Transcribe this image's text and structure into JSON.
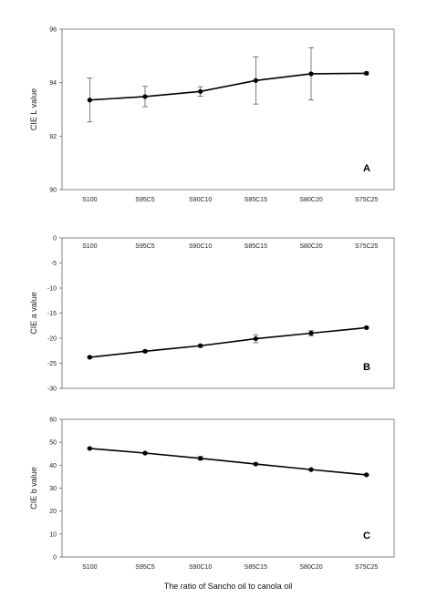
{
  "x_title": "The ratio of Sancho oil to canola oil",
  "chart_data": [
    {
      "type": "line",
      "panel_label": "A",
      "ylabel": "CIE L value",
      "categories": [
        "S100",
        "S95C5",
        "S90C10",
        "S85C15",
        "S80C20",
        "S75C25"
      ],
      "values": [
        93.35,
        93.48,
        93.67,
        94.08,
        94.33,
        94.35
      ],
      "errors": [
        0.82,
        0.38,
        0.18,
        0.88,
        0.98,
        0.05
      ],
      "ylim": [
        90,
        96
      ],
      "yticks": [
        "90",
        "92",
        "94",
        "96"
      ],
      "xaxis_position": "bottom",
      "grid": false
    },
    {
      "type": "line",
      "panel_label": "B",
      "ylabel": "CIE a value",
      "categories": [
        "S100",
        "S95C5",
        "S90C10",
        "S85C15",
        "S80C20",
        "S75C25"
      ],
      "values": [
        -23.8,
        -22.6,
        -21.5,
        -20.1,
        -19.0,
        -17.9
      ],
      "errors": [
        0.15,
        0.2,
        0.2,
        0.8,
        0.5,
        0.15
      ],
      "ylim": [
        -30,
        0
      ],
      "yticks": [
        "-30",
        "-25",
        "-20",
        "-15",
        "-10",
        "-5",
        "0"
      ],
      "xaxis_position": "top",
      "grid": false
    },
    {
      "type": "line",
      "panel_label": "C",
      "ylabel": "CIE b value",
      "categories": [
        "S100",
        "S95C5",
        "S90C10",
        "S85C15",
        "S80C20",
        "S75C25"
      ],
      "values": [
        47.3,
        45.3,
        43.0,
        40.5,
        38.1,
        35.8
      ],
      "errors": [
        0.3,
        0.3,
        0.8,
        0.3,
        0.3,
        0.3
      ],
      "ylim": [
        0,
        60
      ],
      "yticks": [
        "0",
        "10",
        "20",
        "30",
        "40",
        "50",
        "60"
      ],
      "xaxis_position": "bottom",
      "grid": false
    }
  ]
}
